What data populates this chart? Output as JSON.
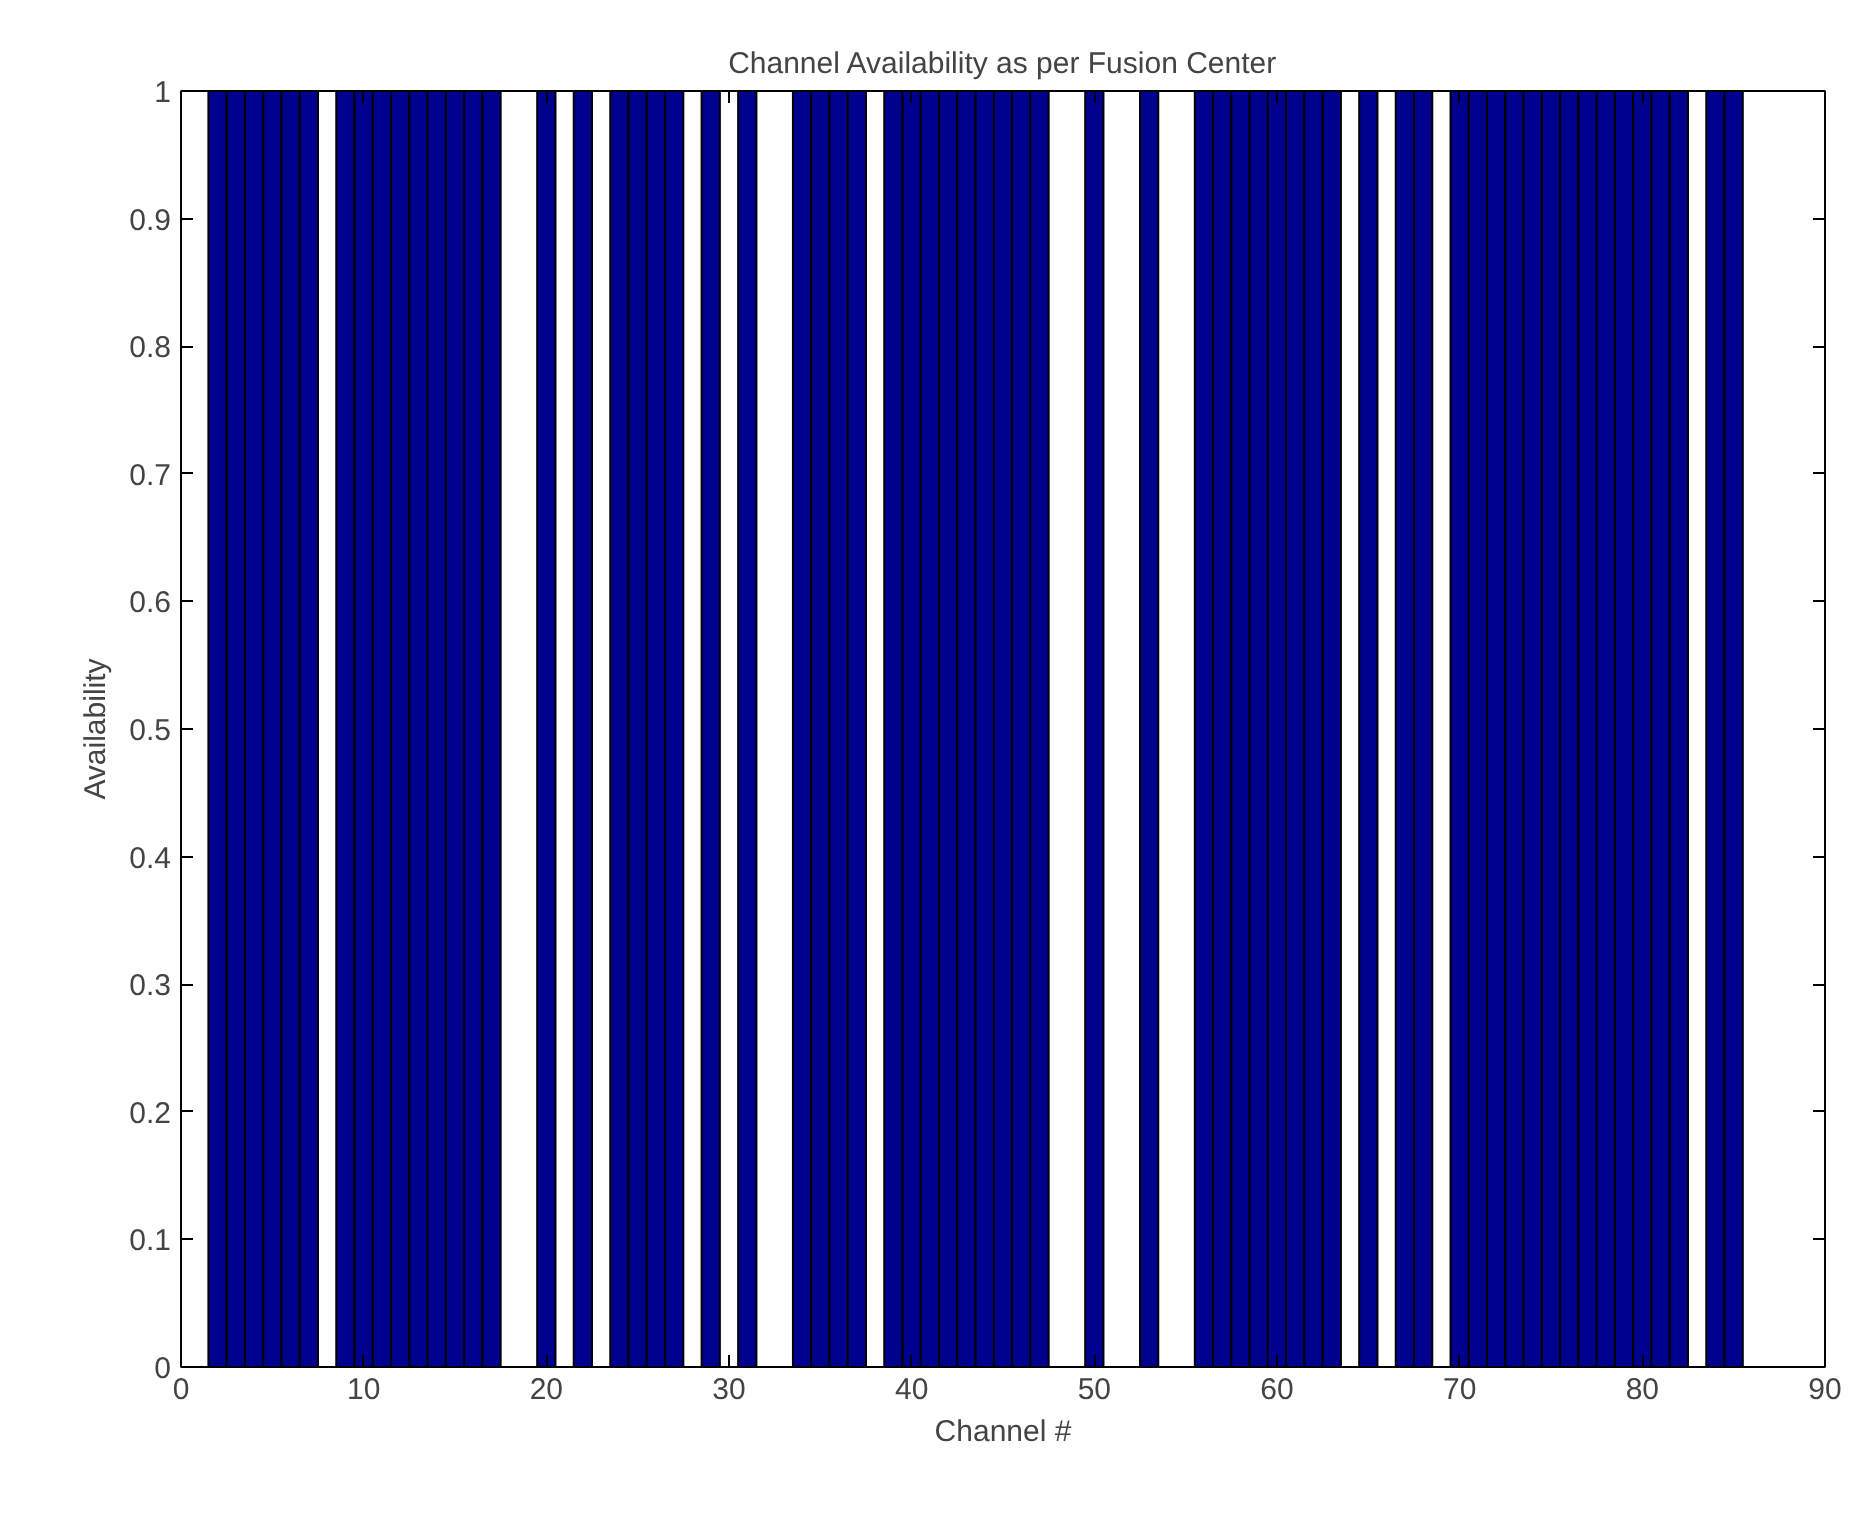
{
  "chart_data": {
    "type": "bar",
    "title": "Channel Availability as per Fusion Center",
    "xlabel": "Channel #",
    "ylabel": "Availability",
    "x": [
      1,
      2,
      3,
      4,
      5,
      6,
      7,
      8,
      9,
      10,
      11,
      12,
      13,
      14,
      15,
      16,
      17,
      18,
      19,
      20,
      21,
      22,
      23,
      24,
      25,
      26,
      27,
      28,
      29,
      30,
      31,
      32,
      33,
      34,
      35,
      36,
      37,
      38,
      39,
      40,
      41,
      42,
      43,
      44,
      45,
      46,
      47,
      48,
      49,
      50,
      51,
      52,
      53,
      54,
      55,
      56,
      57,
      58,
      59,
      60,
      61,
      62,
      63,
      64,
      65,
      66,
      67,
      68,
      69,
      70,
      71,
      72,
      73,
      74,
      75,
      76,
      77,
      78,
      79,
      80,
      81,
      82,
      83,
      84,
      85
    ],
    "values": [
      0,
      1,
      1,
      1,
      1,
      1,
      1,
      0,
      1,
      1,
      1,
      1,
      1,
      1,
      1,
      1,
      1,
      0,
      0,
      1,
      0,
      1,
      0,
      1,
      1,
      1,
      1,
      0,
      1,
      0,
      1,
      0,
      0,
      1,
      1,
      1,
      1,
      0,
      1,
      1,
      1,
      1,
      1,
      1,
      1,
      1,
      1,
      0,
      0,
      1,
      0,
      0,
      1,
      0,
      0,
      1,
      1,
      1,
      1,
      1,
      1,
      1,
      1,
      0,
      1,
      0,
      1,
      1,
      0,
      1,
      1,
      1,
      1,
      1,
      1,
      1,
      1,
      1,
      1,
      1,
      1,
      1,
      0,
      1,
      1
    ],
    "color": "#00008f",
    "xlim": [
      0,
      90
    ],
    "xticks": [
      0,
      10,
      20,
      30,
      40,
      50,
      60,
      70,
      80,
      90
    ],
    "ylim": [
      0,
      1
    ],
    "yticks": [
      0,
      0.1,
      0.2,
      0.3,
      0.4,
      0.5,
      0.6,
      0.7,
      0.8,
      0.9,
      1
    ],
    "grid": false
  }
}
